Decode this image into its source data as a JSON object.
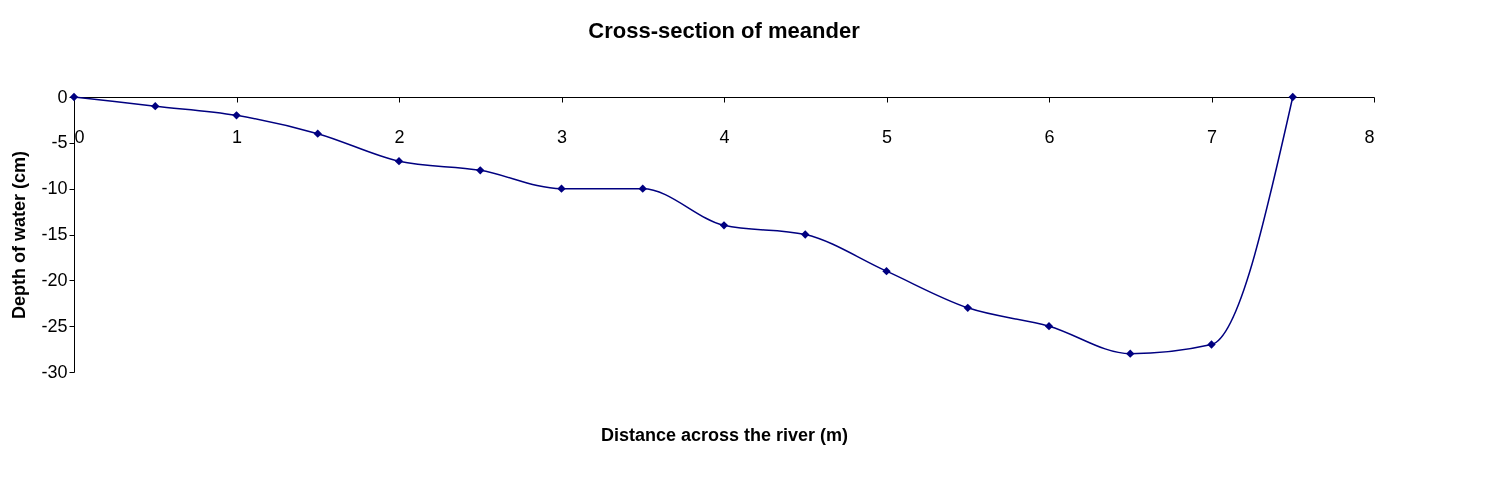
{
  "chart_data": {
    "type": "line",
    "title": "Cross-section of meander",
    "xlabel": "Distance across the river (m)",
    "ylabel": "Depth of water (cm)",
    "x": [
      0,
      0.5,
      1,
      1.5,
      2,
      2.5,
      3,
      3.5,
      4,
      4.5,
      5,
      5.5,
      6,
      6.5,
      7,
      7.5
    ],
    "series": [
      {
        "color": "#000080",
        "values": [
          0,
          -1,
          -2,
          -4,
          -7,
          -8,
          -10,
          -10,
          -14,
          -15,
          -19,
          -23,
          -25,
          -28,
          -27,
          0
        ]
      }
    ],
    "xlim": [
      0,
      8
    ],
    "xticks": [
      0,
      1,
      2,
      3,
      4,
      5,
      6,
      7,
      8
    ],
    "ylim": [
      -30,
      0
    ],
    "yticks": [
      -30,
      -25,
      -20,
      -15,
      -10,
      -5,
      0
    ],
    "grid": false,
    "legend": false,
    "marker": "diamond",
    "line_style": "solid"
  }
}
